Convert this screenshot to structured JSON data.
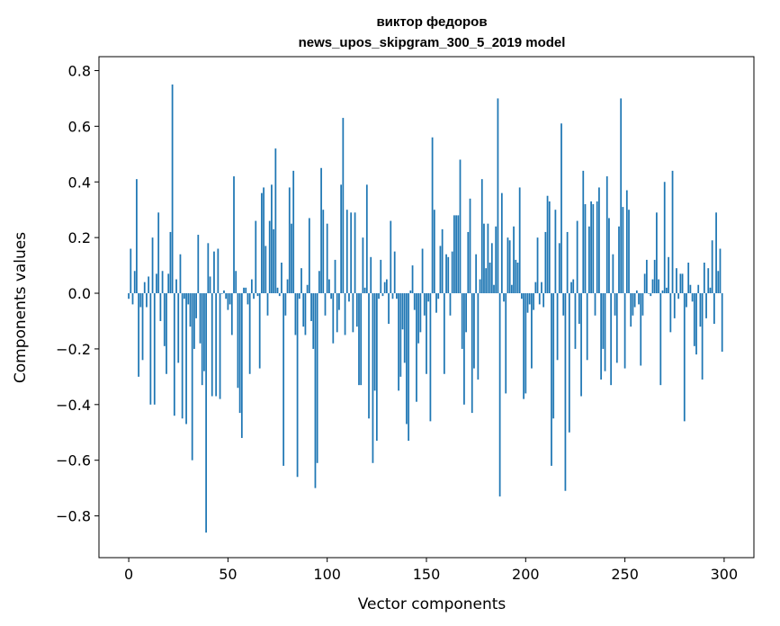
{
  "chart_data": {
    "type": "bar",
    "title_line1": "виктор федоров",
    "title_line2": "news_upos_skipgram_300_5_2019 model",
    "xlabel": "Vector components",
    "ylabel": "Components values",
    "xlim": [
      -15,
      315
    ],
    "ylim": [
      -0.95,
      0.85
    ],
    "x_ticks": [
      0,
      50,
      100,
      150,
      200,
      250,
      300
    ],
    "x_tick_labels": [
      "0",
      "50",
      "100",
      "150",
      "200",
      "250",
      "300"
    ],
    "y_ticks": [
      -0.8,
      -0.6,
      -0.4,
      -0.2,
      0.0,
      0.2,
      0.4,
      0.6,
      0.8
    ],
    "y_tick_labels": [
      "−0.8",
      "−0.6",
      "−0.4",
      "−0.2",
      "0.0",
      "0.2",
      "0.4",
      "0.6",
      "0.8"
    ],
    "bar_color": "#1f77b4",
    "grid": false,
    "values": [
      -0.02,
      0.16,
      -0.04,
      0.08,
      0.41,
      -0.3,
      -0.05,
      -0.24,
      0.04,
      -0.05,
      0.06,
      -0.4,
      0.2,
      -0.4,
      0.07,
      0.29,
      -0.1,
      0.08,
      -0.19,
      -0.29,
      0.07,
      0.22,
      0.75,
      -0.44,
      0.05,
      -0.25,
      0.14,
      -0.45,
      -0.02,
      -0.47,
      -0.04,
      -0.12,
      -0.6,
      -0.2,
      -0.09,
      0.21,
      -0.18,
      -0.33,
      -0.28,
      -0.86,
      0.18,
      0.06,
      -0.37,
      0.15,
      -0.37,
      0.16,
      -0.38,
      0.0,
      0.01,
      -0.02,
      -0.06,
      -0.04,
      -0.15,
      0.42,
      0.08,
      -0.34,
      -0.43,
      -0.52,
      0.02,
      0.02,
      -0.04,
      -0.29,
      0.05,
      -0.02,
      0.26,
      -0.01,
      -0.27,
      0.36,
      0.38,
      0.17,
      -0.08,
      0.26,
      0.39,
      0.23,
      0.52,
      0.02,
      -0.01,
      0.11,
      -0.62,
      -0.08,
      0.05,
      0.38,
      0.25,
      0.44,
      -0.15,
      -0.66,
      -0.02,
      0.09,
      -0.12,
      -0.15,
      0.03,
      0.27,
      -0.1,
      -0.2,
      -0.7,
      -0.61,
      0.08,
      0.45,
      0.3,
      -0.08,
      0.25,
      0.05,
      -0.02,
      -0.18,
      0.12,
      -0.14,
      -0.06,
      0.39,
      0.63,
      -0.15,
      0.3,
      -0.03,
      0.29,
      -0.14,
      0.29,
      -0.12,
      -0.33,
      -0.33,
      0.2,
      0.02,
      0.39,
      -0.45,
      0.13,
      -0.61,
      -0.35,
      -0.53,
      -0.02,
      0.12,
      -0.01,
      0.04,
      0.05,
      -0.11,
      0.26,
      -0.02,
      0.15,
      -0.02,
      -0.35,
      -0.3,
      -0.13,
      -0.25,
      -0.47,
      -0.53,
      0.01,
      0.1,
      -0.06,
      -0.39,
      -0.18,
      -0.14,
      0.16,
      -0.08,
      -0.29,
      -0.03,
      -0.46,
      0.56,
      0.3,
      -0.07,
      -0.02,
      0.17,
      0.23,
      -0.29,
      0.14,
      0.13,
      -0.08,
      0.15,
      0.28,
      0.28,
      0.28,
      0.48,
      -0.2,
      -0.4,
      -0.14,
      0.22,
      0.34,
      -0.43,
      -0.27,
      0.14,
      -0.31,
      0.05,
      0.41,
      0.25,
      0.09,
      0.25,
      0.11,
      0.18,
      0.03,
      0.24,
      0.7,
      -0.73,
      0.36,
      -0.03,
      -0.36,
      0.2,
      0.19,
      0.03,
      0.24,
      0.12,
      0.11,
      0.38,
      -0.02,
      -0.38,
      -0.36,
      -0.07,
      -0.04,
      -0.27,
      -0.06,
      0.04,
      0.2,
      -0.04,
      0.04,
      -0.05,
      0.22,
      0.35,
      0.33,
      -0.62,
      -0.45,
      0.3,
      -0.24,
      0.18,
      0.61,
      -0.08,
      -0.71,
      0.22,
      -0.5,
      0.04,
      0.05,
      -0.2,
      0.26,
      -0.11,
      -0.37,
      0.44,
      0.32,
      -0.24,
      0.24,
      0.33,
      0.32,
      -0.08,
      0.33,
      0.38,
      -0.31,
      -0.2,
      -0.28,
      0.42,
      0.27,
      -0.33,
      0.14,
      -0.08,
      -0.25,
      0.24,
      0.7,
      0.31,
      -0.27,
      0.37,
      0.3,
      -0.12,
      -0.08,
      -0.05,
      0.01,
      -0.04,
      -0.26,
      -0.08,
      0.07,
      0.12,
      0.0,
      -0.01,
      0.05,
      0.12,
      0.29,
      0.05,
      -0.33,
      0.01,
      0.4,
      0.02,
      0.13,
      -0.14,
      0.44,
      -0.09,
      0.09,
      -0.02,
      0.07,
      0.07,
      -0.46,
      -0.05,
      0.11,
      0.03,
      -0.03,
      -0.19,
      -0.22,
      0.03,
      -0.12,
      -0.31,
      0.11,
      -0.09,
      0.09,
      0.02,
      0.19,
      -0.11,
      0.29,
      0.08,
      0.16,
      -0.21
    ]
  }
}
